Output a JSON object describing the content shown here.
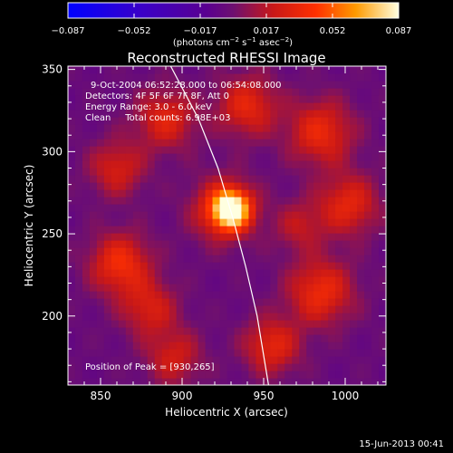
{
  "chart_data": {
    "type": "heatmap",
    "title": "Reconstructed RHESSI Image",
    "xlabel": "Heliocentric X (arcsec)",
    "ylabel": "Heliocentric Y (arcsec)",
    "xlim": [
      830,
      1025
    ],
    "ylim": [
      158,
      352
    ],
    "x_ticks": [
      850,
      900,
      950,
      1000
    ],
    "y_ticks": [
      200,
      250,
      300,
      350
    ],
    "colorbar": {
      "range": [
        -0.087,
        0.087
      ],
      "ticks": [
        "−0.087",
        "−0.052",
        "−0.017",
        "0.017",
        "0.052",
        "0.087"
      ],
      "unit_label": "(photons cm",
      "unit_exp1": "−2",
      "unit_mid": " s",
      "unit_exp2": "−1",
      "unit_mid2": " asec",
      "unit_exp3": "−2",
      "unit_close": ")"
    },
    "info_lines": [
      "9-Oct-2004 06:52:28.000 to 06:54:08.000",
      "Detectors: 4F 5F 6F 7F 8F, Att 0",
      "Energy Range: 3.0 - 6.0 keV",
      "Clean     Total counts: 6.98E+03"
    ],
    "peak_text": "Position of Peak = [930,265]",
    "peak": [
      930,
      265
    ],
    "peak_value": 0.087,
    "limb_curve": [
      [
        893,
        352
      ],
      [
        910,
        320
      ],
      [
        922,
        290
      ],
      [
        931,
        260
      ],
      [
        939,
        230
      ],
      [
        946,
        200
      ],
      [
        953,
        158
      ]
    ],
    "sources": [
      {
        "x": 930,
        "y": 265,
        "amp": 0.087,
        "sigma": 8
      },
      {
        "x": 925,
        "y": 265,
        "amp": 0.035,
        "sigma": 14
      },
      {
        "x": 862,
        "y": 232,
        "amp": 0.042,
        "sigma": 13
      },
      {
        "x": 860,
        "y": 290,
        "amp": 0.03,
        "sigma": 12
      },
      {
        "x": 890,
        "y": 320,
        "amp": 0.034,
        "sigma": 13
      },
      {
        "x": 940,
        "y": 328,
        "amp": 0.036,
        "sigma": 13
      },
      {
        "x": 985,
        "y": 312,
        "amp": 0.038,
        "sigma": 14
      },
      {
        "x": 1002,
        "y": 268,
        "amp": 0.036,
        "sigma": 13
      },
      {
        "x": 985,
        "y": 215,
        "amp": 0.04,
        "sigma": 14
      },
      {
        "x": 955,
        "y": 182,
        "amp": 0.036,
        "sigma": 12
      },
      {
        "x": 895,
        "y": 175,
        "amp": 0.028,
        "sigma": 12
      },
      {
        "x": 880,
        "y": 205,
        "amp": 0.03,
        "sigma": 12
      },
      {
        "x": 972,
        "y": 255,
        "amp": 0.022,
        "sigma": 11
      }
    ]
  },
  "timestamp": "15-Jun-2013 00:41"
}
